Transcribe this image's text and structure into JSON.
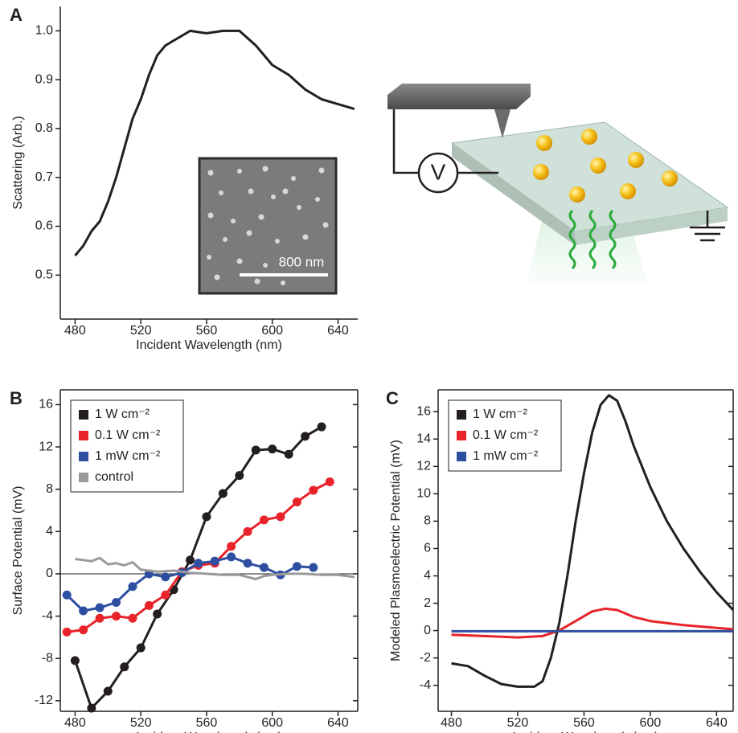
{
  "chart_data": [
    {
      "type": "line",
      "panel_label": "A",
      "x_label": "Incident Wavelength (nm)",
      "y_label": "Scattering (Arb.)",
      "inset_scale_bar": "800 nm",
      "x": [
        480,
        485,
        490,
        495,
        500,
        505,
        510,
        515,
        520,
        525,
        530,
        535,
        540,
        545,
        550,
        560,
        570,
        580,
        590,
        600,
        610,
        620,
        630,
        640,
        650
      ],
      "values": [
        0.54,
        0.56,
        0.59,
        0.61,
        0.65,
        0.7,
        0.76,
        0.82,
        0.86,
        0.91,
        0.95,
        0.97,
        0.98,
        0.99,
        1.0,
        0.995,
        1.0,
        1.0,
        0.97,
        0.93,
        0.91,
        0.88,
        0.86,
        0.85,
        0.84
      ],
      "color": "#231f20",
      "xlim": [
        471,
        652
      ],
      "xticks": [
        480,
        520,
        560,
        600,
        640
      ],
      "ylim": [
        0.41,
        1.05
      ],
      "yticks": [
        0.5,
        0.6,
        0.7,
        0.8,
        0.9,
        {
          "value": 1,
          "label": "1.0"
        }
      ]
    },
    {
      "type": "line",
      "panel_label": "B",
      "x_label": "Incident Wavelength (nm)",
      "y_label": "Surface Potential (mV)",
      "legend": "upper left",
      "zero_line": true,
      "series": [
        {
          "name": "1 W cm⁻²",
          "color": "#231f20",
          "markers": true,
          "x": [
            480,
            490,
            500,
            510,
            520,
            530,
            540,
            550,
            560,
            570,
            580,
            590,
            600,
            610,
            620,
            630
          ],
          "values": [
            -8.2,
            -12.7,
            -11.1,
            -8.8,
            -7.0,
            -3.8,
            -1.5,
            1.3,
            5.4,
            7.6,
            9.3,
            11.7,
            11.8,
            11.3,
            13.0,
            13.9
          ]
        },
        {
          "name": "0.1 W cm⁻²",
          "color": "#e8232a",
          "markers": true,
          "x": [
            475,
            485,
            495,
            505,
            515,
            525,
            535,
            545,
            555,
            565,
            575,
            585,
            595,
            605,
            615,
            625,
            635
          ],
          "values": [
            -5.5,
            -5.3,
            -4.2,
            -4.0,
            -4.2,
            -3.0,
            -2.0,
            0.2,
            0.8,
            1.0,
            2.6,
            4.0,
            5.1,
            5.4,
            6.8,
            7.9,
            8.7
          ]
        },
        {
          "name": "1 mW cm⁻²",
          "color": "#2e4fa1",
          "markers": true,
          "x": [
            475,
            485,
            495,
            505,
            515,
            525,
            535,
            545,
            555,
            565,
            575,
            585,
            595,
            605,
            615,
            625
          ],
          "values": [
            -2.0,
            -3.5,
            -3.2,
            -2.7,
            -1.2,
            0.0,
            -0.3,
            0.1,
            1.0,
            1.2,
            1.6,
            1.0,
            0.6,
            -0.1,
            0.7,
            0.6
          ]
        },
        {
          "name": "control",
          "color": "#9a9a9a",
          "markers": false,
          "x": [
            480,
            490,
            495,
            500,
            505,
            510,
            515,
            520,
            530,
            540,
            550,
            560,
            570,
            580,
            585,
            590,
            595,
            600,
            610,
            620,
            630,
            640,
            650
          ],
          "values": [
            1.4,
            1.2,
            1.5,
            0.9,
            1.0,
            0.8,
            1.1,
            0.4,
            0.2,
            0.3,
            0.1,
            0.0,
            -0.1,
            -0.1,
            -0.3,
            -0.5,
            -0.2,
            -0.1,
            0.0,
            0.0,
            -0.1,
            -0.1,
            -0.3
          ]
        }
      ],
      "xlim": [
        471,
        652
      ],
      "xticks": [
        480,
        520,
        560,
        600,
        640
      ],
      "ylim": [
        -13,
        17.4
      ],
      "yticks": [
        -12,
        -8,
        -4,
        0,
        4,
        8,
        12,
        16
      ]
    },
    {
      "type": "line",
      "panel_label": "C",
      "x_label": "Incident Wavelength (nm)",
      "y_label": "Modeled Plasmoelectric  Potential (mV)",
      "legend": "upper left",
      "series": [
        {
          "name": "1 W cm⁻²",
          "color": "#231f20",
          "markers": false,
          "x": [
            480,
            490,
            500,
            510,
            520,
            530,
            535,
            540,
            545,
            550,
            555,
            560,
            565,
            570,
            575,
            580,
            585,
            590,
            600,
            610,
            620,
            630,
            640,
            650
          ],
          "values": [
            -2.4,
            -2.6,
            -3.3,
            -3.9,
            -4.1,
            -4.1,
            -3.7,
            -2.0,
            0.5,
            4.0,
            8.0,
            11.5,
            14.5,
            16.5,
            17.2,
            16.8,
            15.3,
            13.5,
            10.5,
            8.0,
            6.0,
            4.3,
            2.8,
            1.5
          ]
        },
        {
          "name": "0.1 W cm⁻²",
          "color": "#e8232a",
          "markers": false,
          "x": [
            480,
            500,
            520,
            535,
            545,
            555,
            565,
            573,
            580,
            590,
            600,
            620,
            640,
            650
          ],
          "values": [
            -0.3,
            -0.4,
            -0.5,
            -0.4,
            0.0,
            0.7,
            1.4,
            1.6,
            1.5,
            1.0,
            0.7,
            0.4,
            0.2,
            0.1
          ]
        },
        {
          "name": "1 mW cm⁻²",
          "color": "#2e4fa1",
          "markers": false,
          "x": [
            480,
            650
          ],
          "values": [
            -0.05,
            -0.05
          ]
        }
      ],
      "xlim": [
        472,
        650
      ],
      "xticks": [
        480,
        520,
        560,
        600,
        640
      ],
      "ylim": [
        -5.9,
        17.6
      ],
      "yticks": [
        -4,
        -2,
        0,
        2,
        4,
        6,
        8,
        10,
        12,
        14,
        16
      ]
    }
  ],
  "diagram": {
    "voltmeter_label": "V"
  }
}
